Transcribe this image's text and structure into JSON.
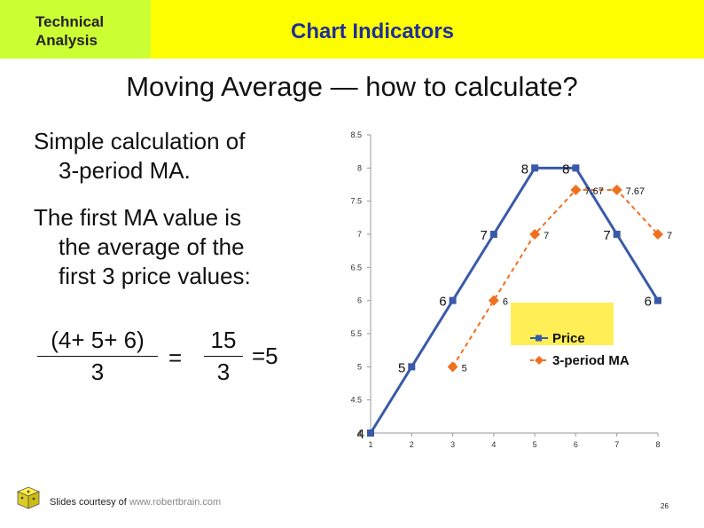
{
  "header": {
    "left_line1": "Technical",
    "left_line2": "Analysis",
    "title": "Chart Indicators"
  },
  "slide": {
    "title": "Moving Average — how to calculate?",
    "bullet1_line1": "Simple calculation of",
    "bullet1_line2": "3-period MA.",
    "bullet2_line1": "The first MA value is",
    "bullet2_line2": "the average of the",
    "bullet2_line3": "first 3 price values:"
  },
  "formula": {
    "numerator": "(4+ 5+ 6)",
    "denominator1": "3",
    "equals1": "=",
    "value15": "15",
    "denominator2": "3",
    "result": "=5"
  },
  "footer": {
    "prefix": "Slides courtesy of",
    "link": "www.robertbrain.com",
    "page": "26"
  },
  "colors": {
    "header_left": "#ccff33",
    "header_right": "#ffff00",
    "header_title": "#1f2f99",
    "price": "#3a5aa8",
    "ma": "#f07020",
    "legend_bg": "#ffee55"
  },
  "chart_data": {
    "type": "line",
    "x": [
      1,
      2,
      3,
      4,
      5,
      6,
      7,
      8
    ],
    "ylim": [
      4,
      8.5
    ],
    "yticks": [
      "8.5",
      "8",
      "7.5",
      "7",
      "6.5",
      "6",
      "5.5",
      "5",
      "4.5",
      "4"
    ],
    "series": [
      {
        "name": "Price",
        "values": [
          4,
          5,
          6,
          7,
          8,
          8,
          7,
          6
        ],
        "labels": [
          "4",
          "5",
          "6",
          "7",
          "8",
          "8",
          "7",
          "6"
        ]
      },
      {
        "name": "3-period MA",
        "values": [
          null,
          null,
          5,
          6,
          7,
          7.67,
          7.67,
          7
        ],
        "labels": [
          "",
          "",
          "5",
          "6",
          "7",
          "7.67",
          "7.67",
          "7"
        ]
      }
    ],
    "legend_position": "right-middle",
    "grid": false
  }
}
